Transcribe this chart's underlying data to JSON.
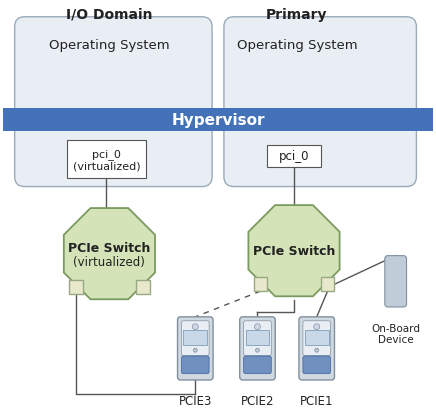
{
  "title_left": "I/O Domain",
  "title_right": "Primary",
  "hypervisor_label": "Hypervisor",
  "hypervisor_color": "#4472b8",
  "hypervisor_text_color": "#ffffff",
  "os_box_fill_top": "#e8eef4",
  "os_box_fill_bot": "#c8d4e0",
  "os_box_edge_color": "#9aaabb",
  "os_label": "Operating System",
  "pci_left_label": "pci_0\n(virtualized)",
  "pci_right_label": "pci_0",
  "switch_left_label_bold": "PCIe Switch",
  "switch_left_label_norm": "(virtualized)",
  "switch_right_label": "PCIe Switch",
  "switch_fill_color": "#d4e4b8",
  "switch_edge_color": "#7a9a60",
  "switch_notch_fill": "#e8e8cc",
  "switch_notch_edge": "#9aaa80",
  "device_fill": "#d0d8e0",
  "device_edge": "#8090a0",
  "device_inner_fill": "#e8eef4",
  "device_connector_top_fill": "#c8d8e8",
  "device_connector_top_edge": "#7090b0",
  "device_connector_bot_fill": "#7090c0",
  "device_connector_bot_edge": "#4060a0",
  "device_labels": [
    "PCIE3",
    "PCIE2",
    "PCIE1"
  ],
  "onboard_label": "On-Board\nDevice",
  "onboard_fill": "#c0ccd8",
  "onboard_edge": "#8090a0",
  "bg_color": "#ffffff",
  "line_color": "#555555",
  "text_color": "#222222"
}
